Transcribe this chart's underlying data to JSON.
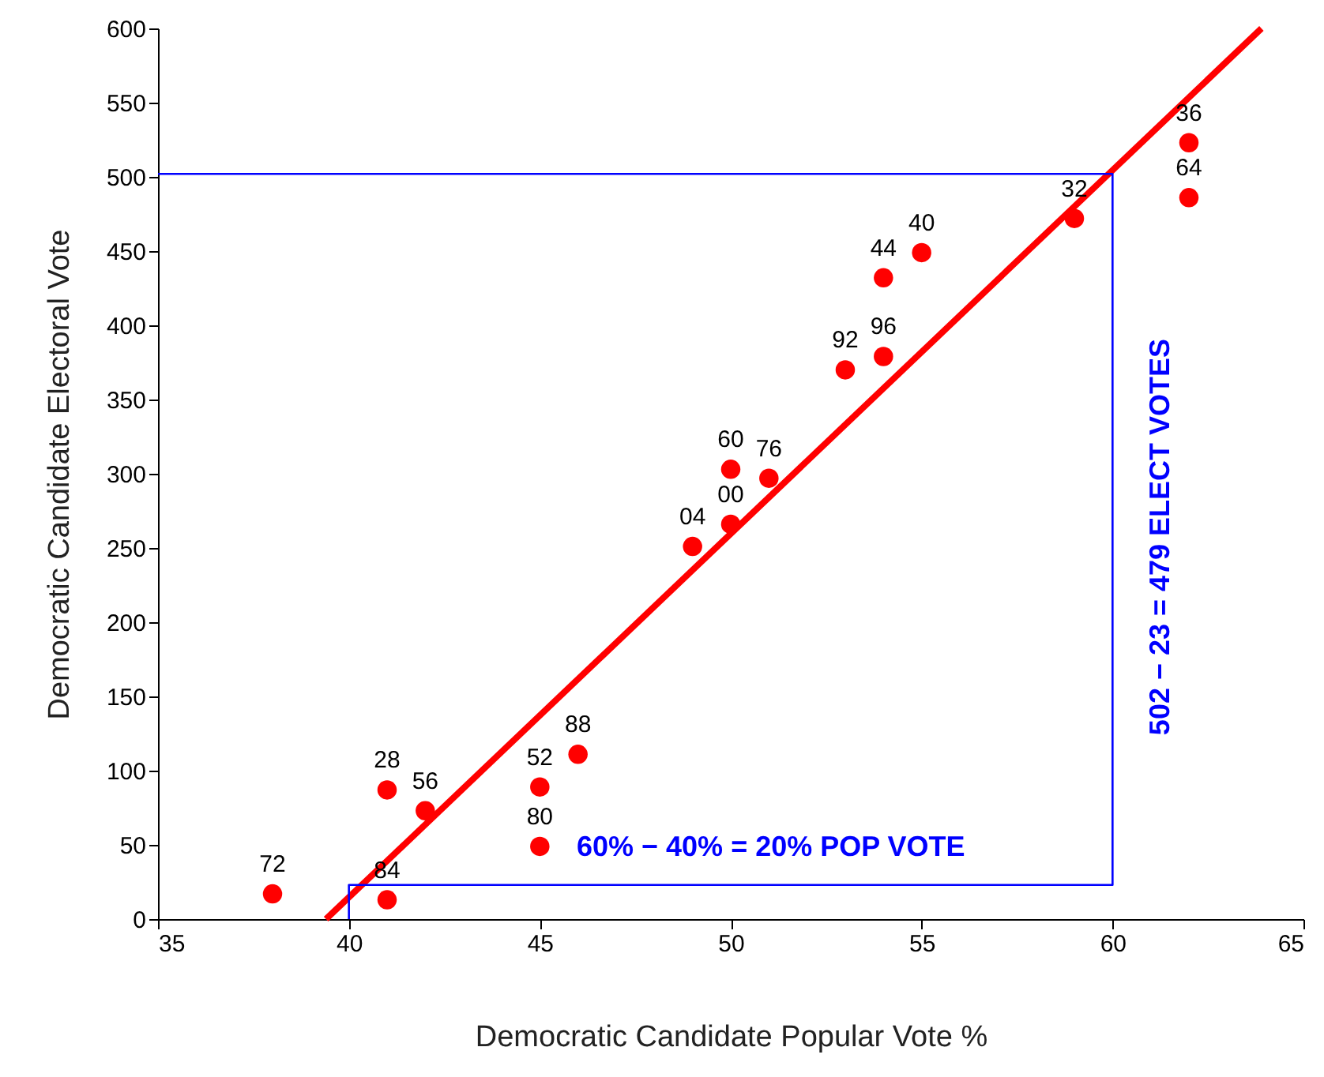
{
  "chart_data": {
    "type": "scatter",
    "xlabel": "Democratic Candidate Popular Vote %",
    "ylabel": "Democratic Candidate Electoral Vote",
    "xlim": [
      35,
      65
    ],
    "xticks": [
      35,
      40,
      45,
      50,
      55,
      60,
      65
    ],
    "ylim": [
      0,
      600
    ],
    "yticks": [
      0,
      50,
      100,
      150,
      200,
      250,
      300,
      350,
      400,
      450,
      500,
      550,
      600
    ],
    "grid": false,
    "series": [
      {
        "color": "#ff0000",
        "marker": "circle",
        "x": [
          38,
          41,
          41,
          42,
          45,
          45,
          46,
          49,
          50,
          50,
          51,
          53,
          54,
          54,
          55,
          59,
          62,
          62
        ],
        "values": [
          17,
          13,
          87,
          73,
          89,
          49,
          111,
          251,
          266,
          303,
          297,
          370,
          379,
          432,
          449,
          472,
          523,
          486
        ]
      },
      {
        "type": "line",
        "color": "#ff0000",
        "x": [
          39.4,
          63.9
        ],
        "values": [
          0,
          600
        ]
      },
      {
        "type": "line",
        "color": "#0000ff",
        "x": [
          35,
          60,
          60,
          40,
          40
        ],
        "values": [
          502,
          502,
          23,
          23,
          0
        ]
      }
    ],
    "annotations": [
      {
        "text": "72",
        "x": 38,
        "y": 17
      },
      {
        "text": "84",
        "x": 41,
        "y": 13
      },
      {
        "text": "28",
        "x": 41,
        "y": 87
      },
      {
        "text": "56",
        "x": 42,
        "y": 73
      },
      {
        "text": "52",
        "x": 45,
        "y": 89
      },
      {
        "text": "80",
        "x": 45,
        "y": 49
      },
      {
        "text": "88",
        "x": 46,
        "y": 111
      },
      {
        "text": "04",
        "x": 49,
        "y": 251
      },
      {
        "text": "00",
        "x": 50,
        "y": 266
      },
      {
        "text": "60",
        "x": 50,
        "y": 303
      },
      {
        "text": "76",
        "x": 51,
        "y": 297
      },
      {
        "text": "92",
        "x": 53,
        "y": 370
      },
      {
        "text": "96",
        "x": 54,
        "y": 379
      },
      {
        "text": "44",
        "x": 54,
        "y": 432
      },
      {
        "text": "40",
        "x": 55,
        "y": 449
      },
      {
        "text": "32",
        "x": 59,
        "y": 472
      },
      {
        "text": "36",
        "x": 62,
        "y": 523
      },
      {
        "text": "64",
        "x": 62,
        "y": 486
      },
      "60% − 40% = 20% POP VOTE",
      "502 − 23 = 479 ELECT VOTES"
    ]
  }
}
